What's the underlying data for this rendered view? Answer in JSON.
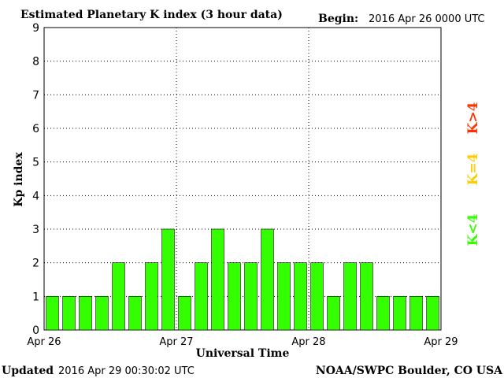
{
  "header": {
    "title": "Estimated Planetary K index (3 hour data)",
    "begin_label": "Begin:",
    "begin_value": "2016 Apr 26 0000 UTC"
  },
  "footer": {
    "updated_label": "Updated",
    "updated_value": "2016 Apr 29 00:30:02 UTC",
    "credit": "NOAA/SWPC Boulder, CO USA"
  },
  "legend": {
    "k_gt_4": "K>4",
    "k_eq_4": "K=4",
    "k_lt_4": "K<4"
  },
  "colors": {
    "k_lt_4": "#33ff00",
    "k_eq_4": "#ffcc00",
    "k_gt_4": "#ff3300",
    "background": "#ffffff",
    "axes": "#000000"
  },
  "chart_data": {
    "type": "bar",
    "title": "Estimated Planetary K index (3 hour data)",
    "xlabel": "Universal Time",
    "ylabel": "Kp index",
    "ylim": [
      0,
      9
    ],
    "yticks": [
      0,
      1,
      2,
      3,
      4,
      5,
      6,
      7,
      8,
      9
    ],
    "xticks": [
      "Apr 26",
      "Apr 27",
      "Apr 28",
      "Apr 29"
    ],
    "grid": true,
    "legend_placement": "right",
    "interval_hours": 3,
    "values": [
      1,
      1,
      1,
      1,
      2,
      1,
      2,
      3,
      1,
      2,
      3,
      2,
      2,
      3,
      2,
      2,
      2,
      1,
      2,
      2,
      1,
      1,
      1,
      1
    ]
  }
}
